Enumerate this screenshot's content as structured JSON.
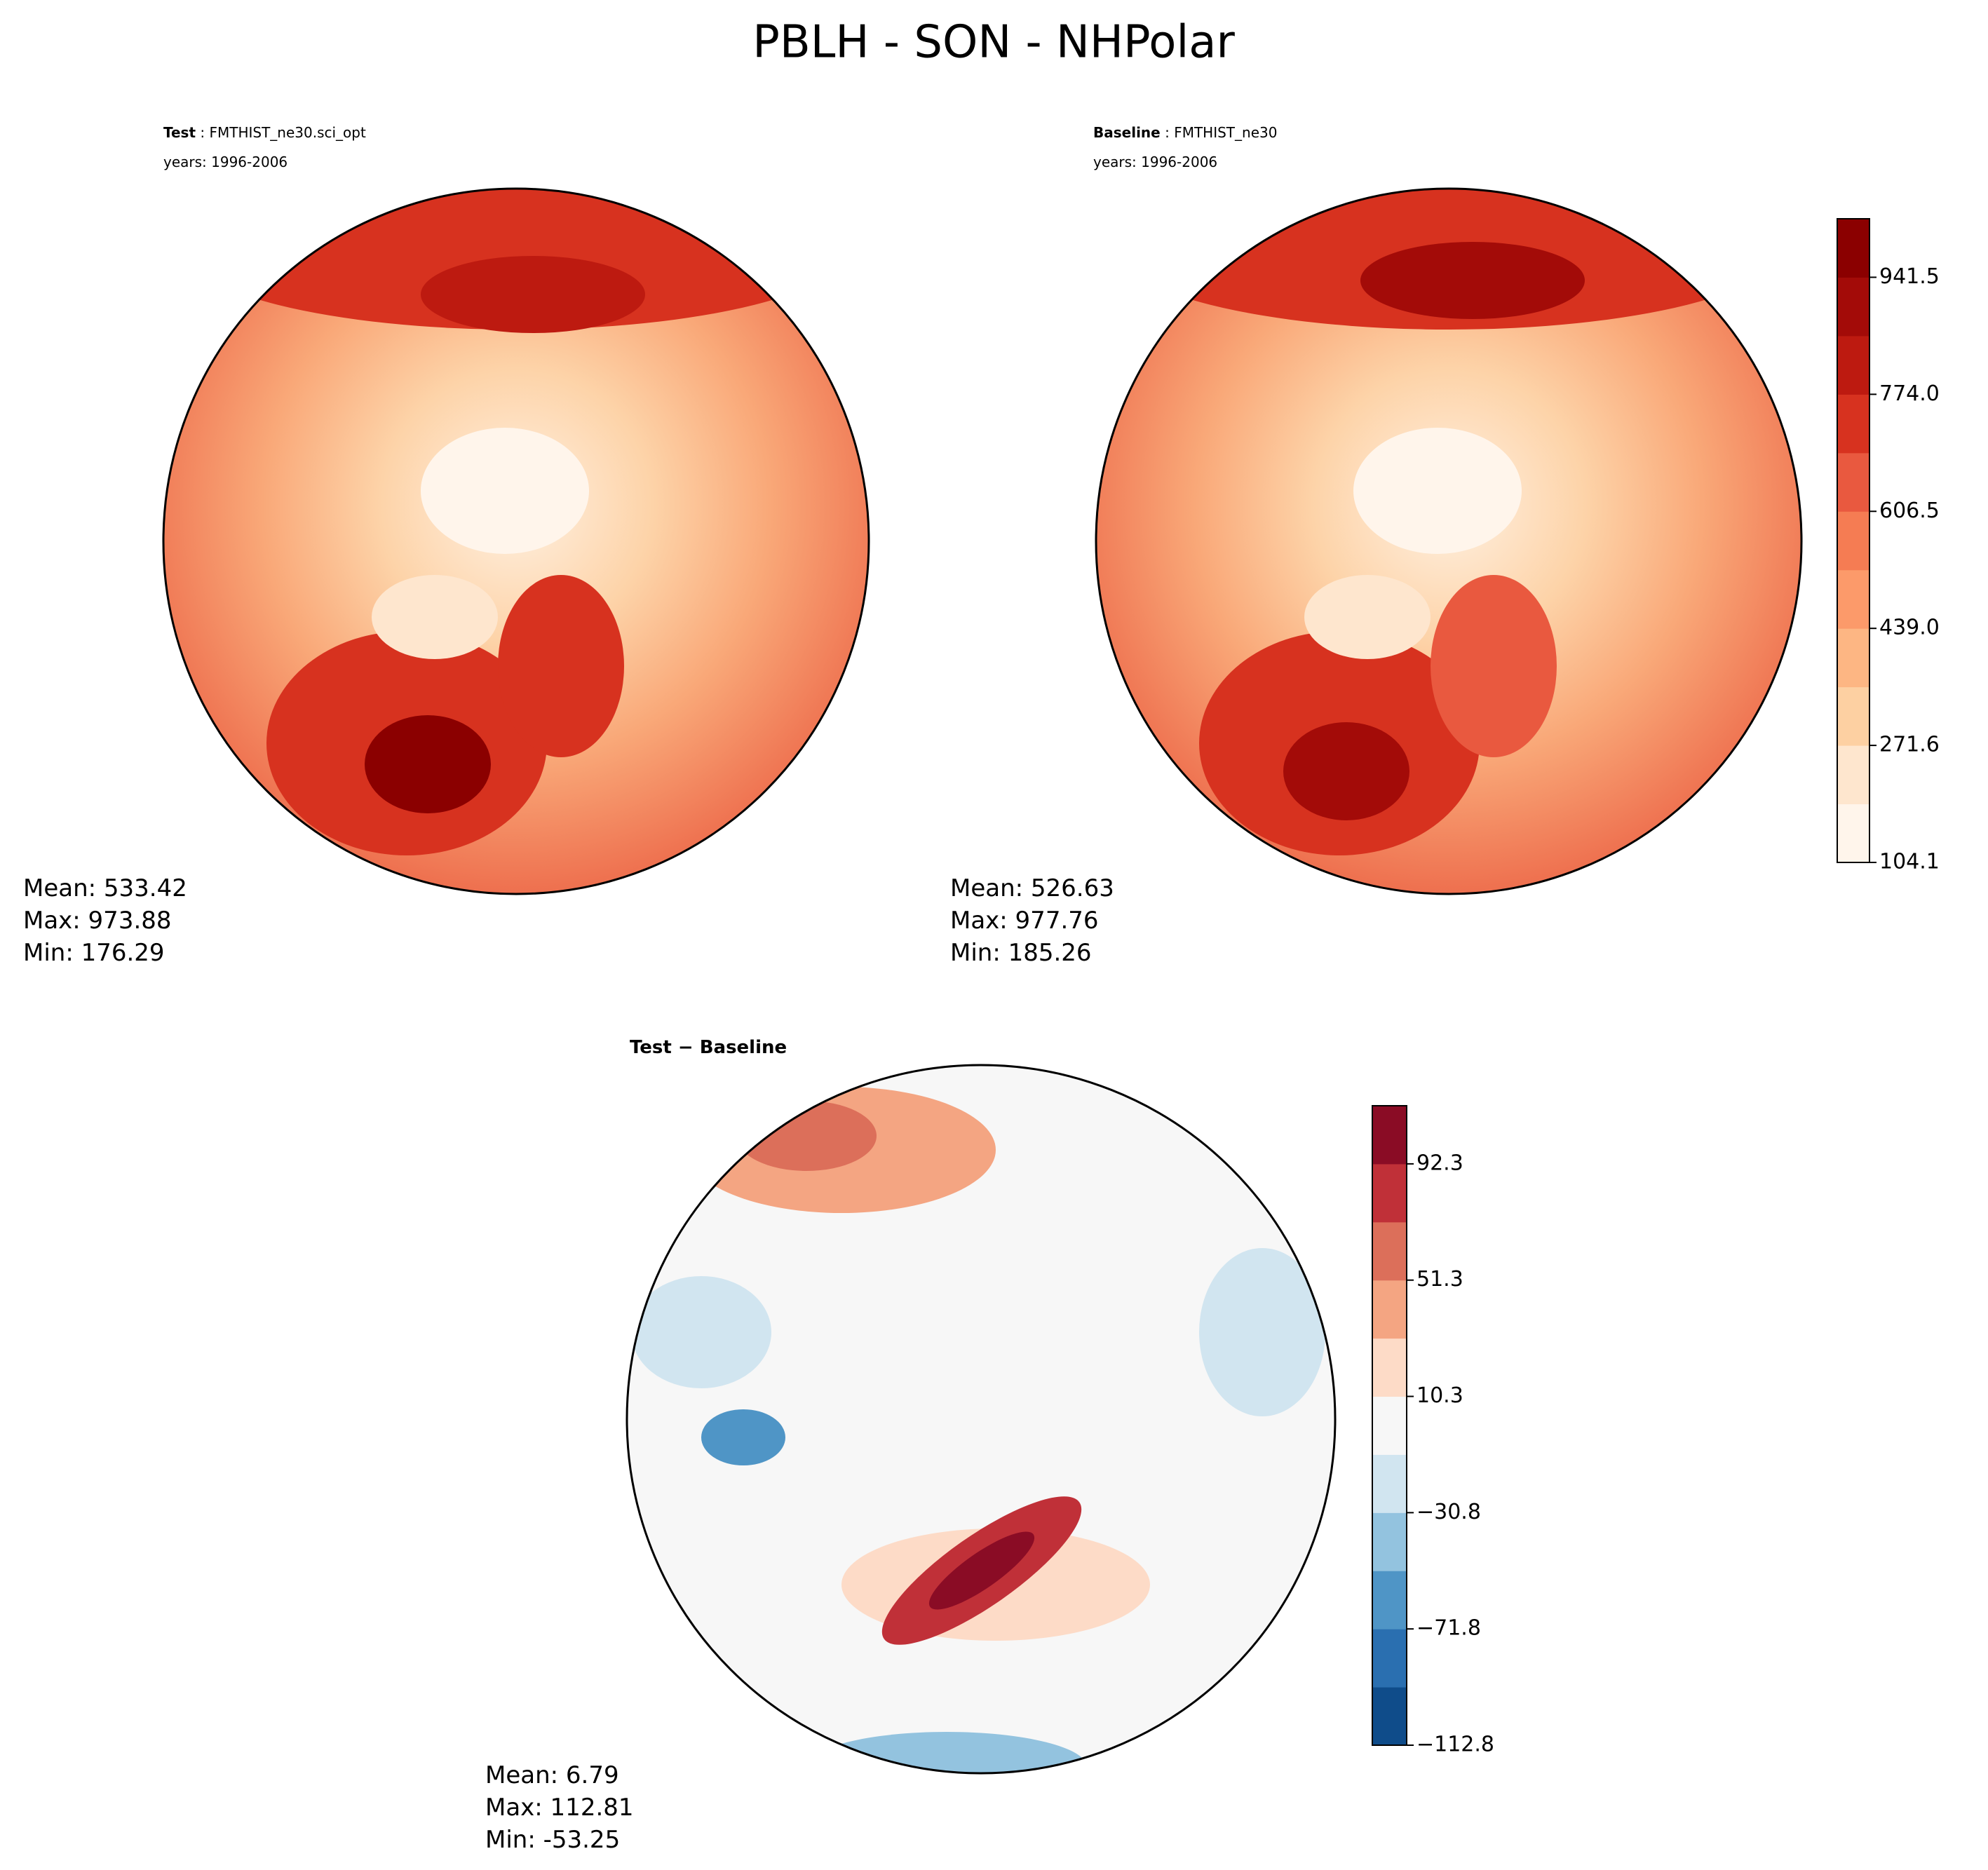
{
  "title": "PBLH - SON - NHPolar",
  "panels": [
    {
      "label_bold": "Test",
      "label_rest": " : FMTHIST_ne30.sci_opt",
      "years": "years: 1996-2006",
      "stats": [
        "Mean: 533.42",
        "Max: 973.88",
        "Min: 176.29"
      ]
    },
    {
      "label_bold": "Baseline",
      "label_rest": " : FMTHIST_ne30",
      "years": "years: 1996-2006",
      "stats": [
        "Mean: 526.63",
        "Max: 977.76",
        "Min: 185.26"
      ]
    }
  ],
  "difference": {
    "label": "Test − Baseline",
    "stats": [
      "Mean:  6.79",
      "Max: 112.81",
      "Min: -53.25"
    ]
  },
  "colorbars": [
    {
      "colors": [
        "#fff5eb",
        "#fee6ce",
        "#fdd0a2",
        "#fdb683",
        "#fc9a6a",
        "#f57c53",
        "#e9593f",
        "#d7321f",
        "#bd1a10",
        "#a30b08",
        "#8b0000"
      ],
      "ticks": [
        "104.1",
        "271.6",
        "439.0",
        "606.5",
        "774.0",
        "941.5"
      ]
    },
    {
      "colors": [
        "#0f4c8a",
        "#2a6fb0",
        "#4f95c6",
        "#93c3df",
        "#d1e5f0",
        "#f7f7f7",
        "#fddbc7",
        "#f4a582",
        "#dc6f5a",
        "#c03038",
        "#8a0c25"
      ],
      "ticks": [
        "−112.8",
        "−71.8",
        "−30.8",
        "10.3",
        "51.3",
        "92.3"
      ]
    }
  ]
}
